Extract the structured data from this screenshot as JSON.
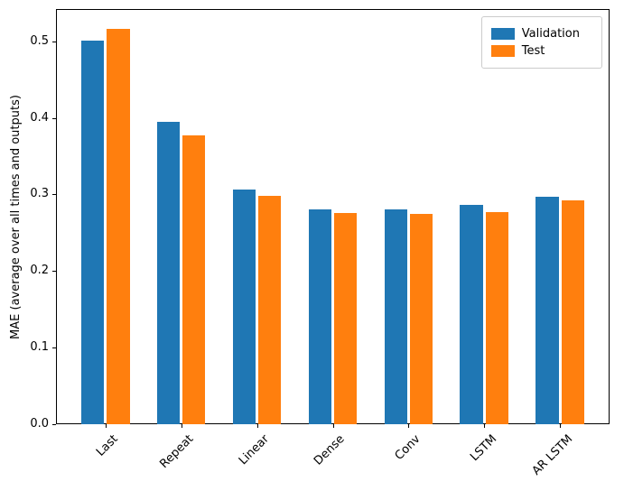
{
  "figure": {
    "background": "#ffffff"
  },
  "chart_data": {
    "type": "bar",
    "title": "",
    "xlabel": "",
    "ylabel": "MAE (average over all times and outputs)",
    "categories": [
      "Last",
      "Repeat",
      "Linear",
      "Dense",
      "Conv",
      "LSTM",
      "AR LSTM"
    ],
    "series": [
      {
        "name": "Validation",
        "color": "#1f77b4",
        "values": [
          0.501,
          0.395,
          0.306,
          0.281,
          0.28,
          0.286,
          0.297
        ]
      },
      {
        "name": "Test",
        "color": "#ff7f0e",
        "values": [
          0.516,
          0.377,
          0.298,
          0.276,
          0.274,
          0.277,
          0.292
        ]
      }
    ],
    "ylim": [
      0,
      0.542
    ],
    "yticks": [
      0.0,
      0.1,
      0.2,
      0.3,
      0.4,
      0.5
    ],
    "ytick_labels": [
      "0.0",
      "0.1",
      "0.2",
      "0.3",
      "0.4",
      "0.5"
    ],
    "x_tick_rotation": 45,
    "grid": false,
    "legend": {
      "position": "upper right",
      "labels": [
        "Validation",
        "Test"
      ]
    }
  }
}
